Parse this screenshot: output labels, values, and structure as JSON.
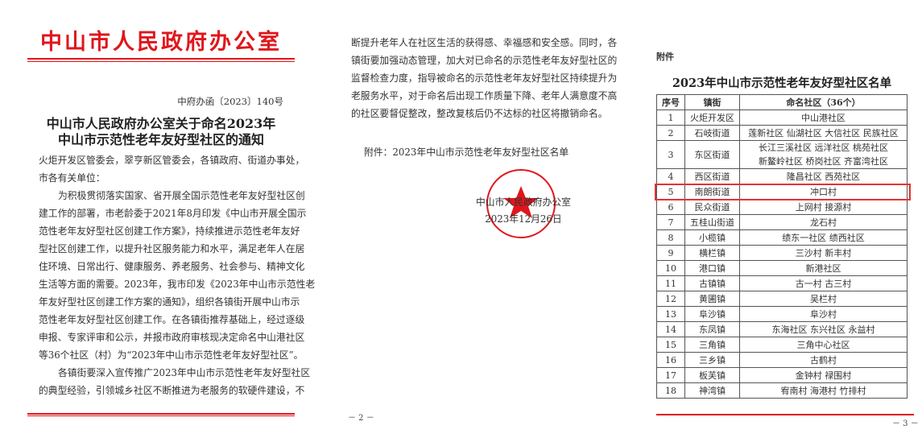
{
  "page2_left": {
    "office_header": "中山市人民政府办公室",
    "doc_number": "中府办函〔2023〕140号",
    "title_lines": [
      "中山市人民政府办公室关于命名2023年",
      "中山市示范性老年友好型社区的通知"
    ],
    "lines": [
      {
        "t": "火炬开发区管委会，翠亨新区管委会，各镇政府、街道办事处，",
        "cls": ""
      },
      {
        "t": "市各有关单位：",
        "cls": "last"
      },
      {
        "t": "为积极贯彻落实国家、省开展全国示范性老年友好型社区创",
        "cls": "indent"
      },
      {
        "t": "建工作的部署，市老龄委于2021年8月印发《中山市开展全国示",
        "cls": ""
      },
      {
        "t": "范性老年友好型社区创建工作方案》，持续推进示范性老年友好",
        "cls": ""
      },
      {
        "t": "型社区创建工作，以提升社区服务能力和水平，满足老年人在居",
        "cls": ""
      },
      {
        "t": "住环境、日常出行、健康服务、养老服务、社会参与、精神文化",
        "cls": ""
      },
      {
        "t": "生活等方面的需要。2023年，我市印发《2023年中山市示范性老",
        "cls": ""
      },
      {
        "t": "年友好型社区创建工作方案的通知》，组织各镇街开展中山市示",
        "cls": ""
      },
      {
        "t": "范性老年友好型社区创建工作。在各镇街推荐基础上，经过逐级",
        "cls": ""
      },
      {
        "t": "申报、专家评审和公示，并报市政府审核现决定命名中山港社区",
        "cls": ""
      },
      {
        "t": "等36个社区（村）为“2023年中山市示范性老年友好型社区”。",
        "cls": ""
      },
      {
        "t": "各镇街要深入宣传推广2023年中山市示范性老年友好型社区",
        "cls": "indent"
      },
      {
        "t": "的典型经验，引领城乡社区不断推进为老服务的软硬件建设，不",
        "cls": ""
      }
    ],
    "page_number": "－ 2 －"
  },
  "page2_right": {
    "lines": [
      {
        "t": "断提升老年人在社区生活的获得感、幸福感和安全感。同时，各",
        "cls": ""
      },
      {
        "t": "镇街要加强动态管理，加大对已命名的示范性老年友好型社区的",
        "cls": ""
      },
      {
        "t": "监督检查力度，指导被命名的示范性老年友好型社区持续提升为",
        "cls": ""
      },
      {
        "t": "老服务水平，对于命名后出现工作质量下降、老年人满意度不高",
        "cls": ""
      },
      {
        "t": "的社区要督促整改，整改复核后仍不达标的社区将撤销命名。",
        "cls": "last"
      }
    ],
    "attachment": "附件：2023年中山市示范性老年友好型社区名单",
    "signature": "中山市人民政府办公室",
    "date": "2023年12月26日",
    "seal": {
      "text": "中山市人民政府办公室",
      "color": "#e0161c"
    }
  },
  "page3": {
    "label": "附件",
    "title": "2023年中山市示范性老年友好型社区名单",
    "headers": [
      "序号",
      "镇街",
      "命名社区（36个）"
    ],
    "rows": [
      [
        "1",
        "火炬开发区",
        "中山港社区"
      ],
      [
        "2",
        "石岐街道",
        "莲新社区  仙湖社区  大信社区  民族社区"
      ],
      [
        "3",
        "东区街道",
        "长江三溪社区  远洋社区  桃苑社区\n新鳌岭社区  桥岗社区  齐富湾社区"
      ],
      [
        "4",
        "西区街道",
        "隆昌社区  西苑社区"
      ],
      [
        "5",
        "南朗街道",
        "冲口村"
      ],
      [
        "6",
        "民众街道",
        "上网村  接源村"
      ],
      [
        "7",
        "五桂山街道",
        "龙石村"
      ],
      [
        "8",
        "小榄镇",
        "绩东一社区  绩西社区"
      ],
      [
        "9",
        "横栏镇",
        "三沙村  新丰村"
      ],
      [
        "10",
        "港口镇",
        "新港社区"
      ],
      [
        "11",
        "古镇镇",
        "古一村  古三村"
      ],
      [
        "12",
        "黄圃镇",
        "吴栏村"
      ],
      [
        "13",
        "阜沙镇",
        "阜沙村"
      ],
      [
        "14",
        "东凤镇",
        "东海社区  东兴社区  永益村"
      ],
      [
        "15",
        "三角镇",
        "三角中心社区"
      ],
      [
        "16",
        "三乡镇",
        "古鹤村"
      ],
      [
        "17",
        "板芙镇",
        "金钟村  禄围村"
      ],
      [
        "18",
        "神湾镇",
        "宥南村  海港村  竹排村"
      ]
    ],
    "highlighted_row": 5,
    "highlight_color": "#e33333",
    "page_number": "－ 3 －"
  }
}
